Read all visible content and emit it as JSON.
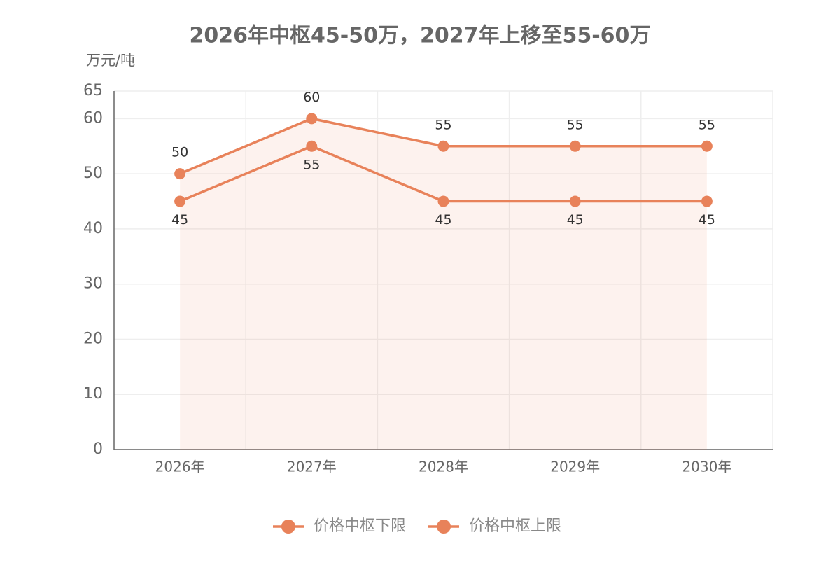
{
  "chart_data": {
    "type": "line",
    "title": "2026年中枢45-50万，2027年上移至55-60万",
    "y_axis_label": "万元/吨",
    "categories": [
      "2026年",
      "2027年",
      "2028年",
      "2029年",
      "2030年"
    ],
    "series": [
      {
        "name": "价格中枢下限",
        "color": "#e8825a",
        "values": [
          45,
          55,
          45,
          45,
          45
        ],
        "label_position": "bottom",
        "area": false
      },
      {
        "name": "价格中枢上限",
        "color": "#e8825a",
        "values": [
          50,
          60,
          55,
          55,
          55
        ],
        "label_position": "top",
        "area": true
      }
    ],
    "ylim": [
      0,
      65
    ],
    "yticks": [
      0,
      10,
      20,
      30,
      40,
      50,
      60,
      65
    ],
    "grid": true,
    "legend": "bottom"
  }
}
